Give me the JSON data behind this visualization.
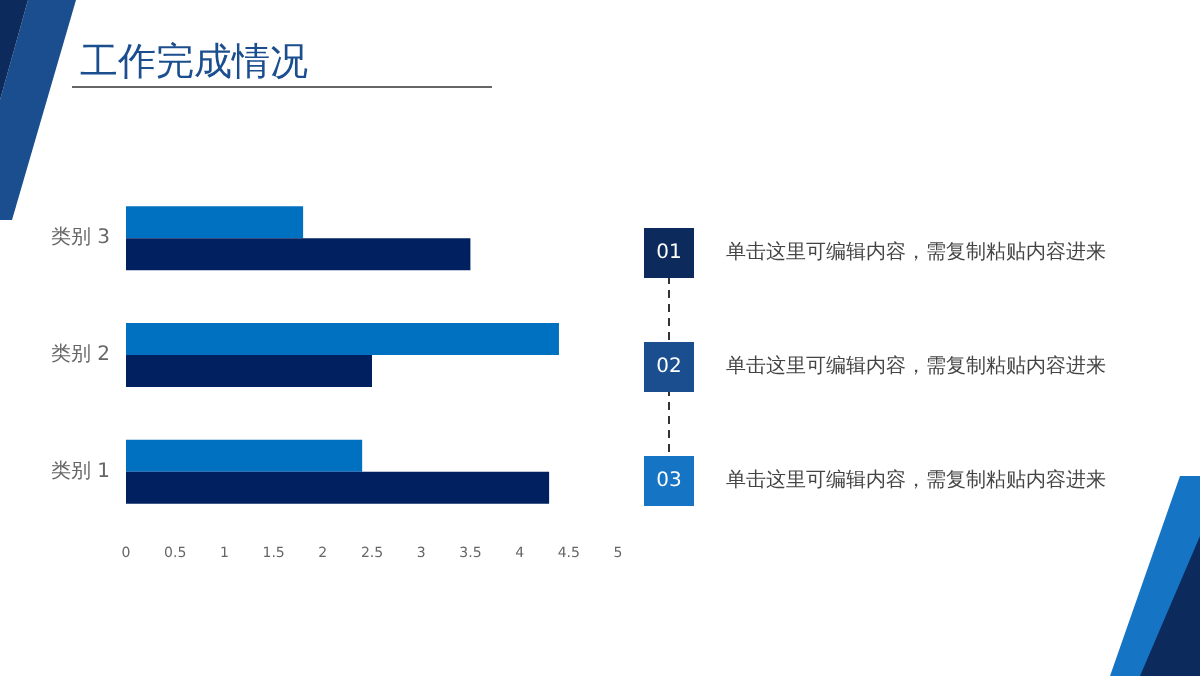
{
  "chart_data": {
    "type": "bar",
    "title": "工作完成情况",
    "orientation": "horizontal",
    "categories": [
      "类别 3",
      "类别 2",
      "类别 1"
    ],
    "series": [
      {
        "color": "#0070c0",
        "values": [
          1.8,
          4.4,
          2.4
        ]
      },
      {
        "color": "#002060",
        "values": [
          3.5,
          2.5,
          4.3
        ]
      }
    ],
    "xlim": [
      0,
      5
    ],
    "xticks": [
      0,
      0.5,
      1,
      1.5,
      2,
      2.5,
      3,
      3.5,
      4,
      4.5,
      5
    ],
    "grid": false,
    "annotations": [
      "01",
      "单击这里可编辑内容，需复制粘贴内容进来",
      "02",
      "单击这里可编辑内容，需复制粘贴内容进来",
      "03",
      "单击这里可编辑内容，需复制粘贴内容进来"
    ]
  }
}
